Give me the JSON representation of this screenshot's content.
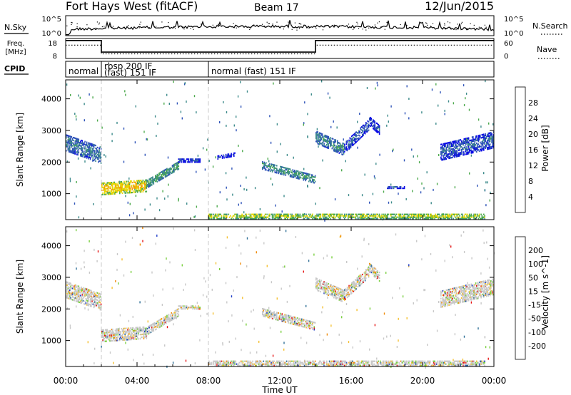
{
  "header": {
    "site": "Fort Hays West (fitACF)",
    "beam": "Beam 17",
    "date": "12/Jun/2015"
  },
  "top_panels": {
    "nsky": {
      "label": "N.Sky",
      "right_label": "N.Search",
      "y_ticks": [
        "10^5",
        "10^0"
      ],
      "right_ticks": [
        "10^5",
        "10^0"
      ]
    },
    "freq": {
      "label_line1": "Freq.",
      "label_line2": "[MHz]",
      "right_label": "Nave",
      "y_ticks": [
        18,
        8
      ],
      "right_ticks": [
        60,
        0
      ],
      "segments": [
        {
          "start": 0.0,
          "end": 2.0,
          "freq": 17.0,
          "nave": 40
        },
        {
          "start": 2.0,
          "end": 14.0,
          "freq": 11.2,
          "nave": 14
        },
        {
          "start": 14.0,
          "end": 24.0,
          "freq": 17.0,
          "nave": 40
        }
      ]
    },
    "cpid": {
      "label": "CPID",
      "modes": [
        {
          "start": 0.0,
          "end": 2.0,
          "line1": "normal",
          "line2": ""
        },
        {
          "start": 2.0,
          "end": 8.0,
          "line1": "rbsp 200 IF",
          "line2": "(fast) 151 IF"
        },
        {
          "start": 8.0,
          "end": 24.0,
          "line1": "normal (fast) 151 IF",
          "line2": ""
        }
      ]
    }
  },
  "chart_data": [
    {
      "type": "heatmap",
      "name": "power",
      "ylabel": "Slant Range [km]",
      "xlabel": "",
      "x_range_hours": [
        0,
        24
      ],
      "ylim": [
        180,
        4600
      ],
      "y_ticks": [
        1000,
        2000,
        3000,
        4000
      ],
      "colorbar": {
        "label": "Power [dB]",
        "ticks": [
          4,
          8,
          12,
          16,
          20,
          24,
          28
        ],
        "range": [
          0,
          30
        ],
        "colors": [
          "#0a0ae6",
          "#2e53b8",
          "#3c8a8a",
          "#4caa4c",
          "#e6d800",
          "#f29a0a",
          "#f05a0a",
          "#e60a0a"
        ]
      },
      "features": [
        {
          "start": 0.0,
          "end": 2.0,
          "r0": 2600,
          "r1": 2200,
          "width": 500,
          "val": 9
        },
        {
          "start": 2.0,
          "end": 4.5,
          "r0": 1150,
          "r1": 1250,
          "width": 380,
          "val": 19
        },
        {
          "start": 4.5,
          "end": 6.3,
          "r0": 1300,
          "r1": 1900,
          "width": 260,
          "val": 12
        },
        {
          "start": 6.3,
          "end": 7.5,
          "r0": 2050,
          "r1": 2050,
          "width": 120,
          "val": 6
        },
        {
          "start": 8.5,
          "end": 9.5,
          "r0": 2150,
          "r1": 2250,
          "width": 120,
          "val": 5
        },
        {
          "start": 11.0,
          "end": 14.0,
          "r0": 1900,
          "r1": 1450,
          "width": 260,
          "val": 11
        },
        {
          "start": 14.0,
          "end": 15.6,
          "r0": 2800,
          "r1": 2400,
          "width": 400,
          "val": 10
        },
        {
          "start": 15.6,
          "end": 17.0,
          "r0": 2450,
          "r1": 3200,
          "width": 350,
          "val": 7
        },
        {
          "start": 17.0,
          "end": 17.6,
          "r0": 3300,
          "r1": 3000,
          "width": 300,
          "val": 6
        },
        {
          "start": 18.0,
          "end": 19.0,
          "r0": 1200,
          "r1": 1200,
          "width": 80,
          "val": 6
        },
        {
          "start": 21.0,
          "end": 24.0,
          "r0": 2300,
          "r1": 2700,
          "width": 500,
          "val": 7
        },
        {
          "start": 8.0,
          "end": 23.5,
          "r0": 280,
          "r1": 280,
          "width": 160,
          "val": 16
        }
      ]
    },
    {
      "type": "heatmap",
      "name": "velocity",
      "ylabel": "Slant Range [km]",
      "xlabel": "Time UT",
      "x_range_hours": [
        0,
        24
      ],
      "x_ticks": [
        "00:00",
        "04:00",
        "08:00",
        "12:00",
        "16:00",
        "20:00",
        "00:00"
      ],
      "ylim": [
        180,
        4600
      ],
      "y_ticks": [
        1000,
        2000,
        3000,
        4000
      ],
      "colorbar": {
        "label": "Velocity [m s^-1]",
        "ticks": [
          200,
          100,
          50,
          15,
          -15,
          -50,
          -100,
          -200
        ],
        "colors": [
          "#1e3cc8",
          "#2d6e96",
          "#3c9450",
          "#7ad040",
          "#c8c8c8",
          "#f5c030",
          "#f08c0a",
          "#f05a0a",
          "#e61414"
        ]
      },
      "features": [
        {
          "start": 0.0,
          "end": 2.0,
          "r0": 2600,
          "r1": 2200,
          "width": 500,
          "val": 0
        },
        {
          "start": 2.0,
          "end": 4.5,
          "r0": 1150,
          "r1": 1250,
          "width": 380,
          "val": 0
        },
        {
          "start": 4.5,
          "end": 6.3,
          "r0": 1300,
          "r1": 1900,
          "width": 260,
          "val": 0
        },
        {
          "start": 6.3,
          "end": 7.5,
          "r0": 2050,
          "r1": 2050,
          "width": 120,
          "val": 0
        },
        {
          "start": 11.0,
          "end": 14.0,
          "r0": 1900,
          "r1": 1450,
          "width": 260,
          "val": 0
        },
        {
          "start": 14.0,
          "end": 15.6,
          "r0": 2800,
          "r1": 2400,
          "width": 400,
          "val": 0
        },
        {
          "start": 15.6,
          "end": 17.0,
          "r0": 2450,
          "r1": 3200,
          "width": 350,
          "val": 0
        },
        {
          "start": 17.0,
          "end": 17.6,
          "r0": 3300,
          "r1": 3000,
          "width": 300,
          "val": 0
        },
        {
          "start": 21.0,
          "end": 24.0,
          "r0": 2300,
          "r1": 2700,
          "width": 500,
          "val": 0
        },
        {
          "start": 8.0,
          "end": 23.5,
          "r0": 280,
          "r1": 280,
          "width": 160,
          "val": -30
        }
      ]
    }
  ]
}
